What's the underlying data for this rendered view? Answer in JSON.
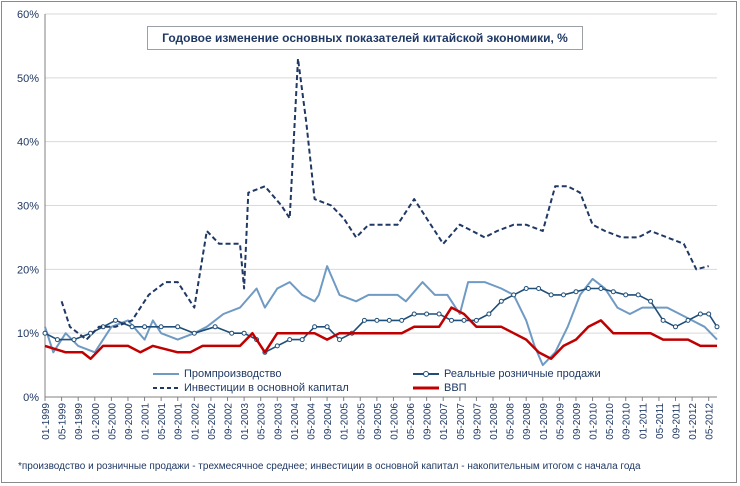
{
  "title": "Годовое изменение основных показателей китайской экономики, %",
  "footnote": "*производство и розничные продажи - трехмесячное среднее; инвестиции в основной капитал - накопительным итогом с начала года",
  "colors": {
    "industrial": "#6f9ac4",
    "retail": "#1f4e79",
    "investment": "#1f3864",
    "gdp": "#c00000"
  },
  "chart_data": {
    "type": "line",
    "title": "Годовое изменение основных показателей китайской экономики, %",
    "ylim": [
      0,
      60
    ],
    "y_ticks": [
      "0%",
      "10%",
      "20%",
      "30%",
      "40%",
      "50%",
      "60%"
    ],
    "x_ticks": [
      "01-1999",
      "05-1999",
      "09-1999",
      "01-2000",
      "05-2000",
      "09-2000",
      "01-2001",
      "05-2001",
      "09-2001",
      "01-2002",
      "05-2002",
      "09-2002",
      "01-2003",
      "05-2003",
      "09-2003",
      "01-2004",
      "05-2004",
      "09-2004",
      "01-2005",
      "05-2005",
      "09-2005",
      "01-2006",
      "05-2006",
      "09-2006",
      "01-2007",
      "05-2007",
      "09-2007",
      "01-2008",
      "05-2008",
      "09-2008",
      "01-2009",
      "05-2009",
      "09-2009",
      "01-2010",
      "05-2010",
      "09-2010",
      "01-2011",
      "05-2011",
      "09-2011",
      "01-2012",
      "05-2012"
    ],
    "x_range": [
      "1999-01",
      "2012-07"
    ],
    "grid": true,
    "legend_position": "bottom",
    "series": [
      {
        "name": "Промпроизводство",
        "style": "solid-light",
        "points": [
          [
            "1999-01",
            11
          ],
          [
            "1999-03",
            7
          ],
          [
            "1999-06",
            10
          ],
          [
            "1999-09",
            8
          ],
          [
            "2000-01",
            7
          ],
          [
            "2000-05",
            11
          ],
          [
            "2000-09",
            12
          ],
          [
            "2001-01",
            9
          ],
          [
            "2001-03",
            12
          ],
          [
            "2001-05",
            10
          ],
          [
            "2001-09",
            9
          ],
          [
            "2002-01",
            10
          ],
          [
            "2002-04",
            11
          ],
          [
            "2002-08",
            13
          ],
          [
            "2002-12",
            14
          ],
          [
            "2003-04",
            17
          ],
          [
            "2003-06",
            14
          ],
          [
            "2003-09",
            17
          ],
          [
            "2003-12",
            18
          ],
          [
            "2004-03",
            16
          ],
          [
            "2004-06",
            15
          ],
          [
            "2004-07",
            16
          ],
          [
            "2004-09",
            20.5
          ],
          [
            "2004-12",
            16
          ],
          [
            "2005-04",
            15
          ],
          [
            "2005-07",
            16
          ],
          [
            "2005-10",
            16
          ],
          [
            "2006-02",
            16
          ],
          [
            "2006-04",
            15
          ],
          [
            "2006-08",
            18
          ],
          [
            "2006-11",
            16
          ],
          [
            "2007-02",
            16
          ],
          [
            "2007-05",
            13
          ],
          [
            "2007-07",
            18
          ],
          [
            "2007-11",
            18
          ],
          [
            "2008-03",
            17
          ],
          [
            "2008-06",
            16
          ],
          [
            "2008-09",
            12
          ],
          [
            "2008-11",
            8
          ],
          [
            "2009-01",
            5
          ],
          [
            "2009-04",
            7
          ],
          [
            "2009-07",
            11
          ],
          [
            "2009-10",
            16
          ],
          [
            "2010-01",
            18.5
          ],
          [
            "2010-04",
            17
          ],
          [
            "2010-07",
            14
          ],
          [
            "2010-10",
            13
          ],
          [
            "2011-01",
            14
          ],
          [
            "2011-04",
            14
          ],
          [
            "2011-07",
            14
          ],
          [
            "2011-10",
            13
          ],
          [
            "2012-01",
            12
          ],
          [
            "2012-04",
            11
          ],
          [
            "2012-07",
            9
          ]
        ]
      },
      {
        "name": "Реальные розничные продажи",
        "style": "solid-markers",
        "points": [
          [
            "1999-01",
            10
          ],
          [
            "1999-04",
            9
          ],
          [
            "1999-08",
            9
          ],
          [
            "1999-12",
            10
          ],
          [
            "2000-03",
            11
          ],
          [
            "2000-06",
            12
          ],
          [
            "2000-10",
            11
          ],
          [
            "2001-01",
            11
          ],
          [
            "2001-05",
            11
          ],
          [
            "2001-09",
            11
          ],
          [
            "2002-01",
            10
          ],
          [
            "2002-06",
            11
          ],
          [
            "2002-10",
            10
          ],
          [
            "2003-01",
            10
          ],
          [
            "2003-04",
            9
          ],
          [
            "2003-06",
            7
          ],
          [
            "2003-09",
            8
          ],
          [
            "2003-12",
            9
          ],
          [
            "2004-03",
            9
          ],
          [
            "2004-06",
            11
          ],
          [
            "2004-09",
            11
          ],
          [
            "2004-12",
            9
          ],
          [
            "2005-03",
            10
          ],
          [
            "2005-06",
            12
          ],
          [
            "2005-09",
            12
          ],
          [
            "2005-12",
            12
          ],
          [
            "2006-03",
            12
          ],
          [
            "2006-06",
            13
          ],
          [
            "2006-09",
            13
          ],
          [
            "2006-12",
            13
          ],
          [
            "2007-03",
            12
          ],
          [
            "2007-06",
            12
          ],
          [
            "2007-09",
            12
          ],
          [
            "2007-12",
            13
          ],
          [
            "2008-03",
            15
          ],
          [
            "2008-06",
            16
          ],
          [
            "2008-09",
            17
          ],
          [
            "2008-12",
            17
          ],
          [
            "2009-03",
            16
          ],
          [
            "2009-06",
            16
          ],
          [
            "2009-09",
            16.5
          ],
          [
            "2009-12",
            17
          ],
          [
            "2010-03",
            17
          ],
          [
            "2010-06",
            16.5
          ],
          [
            "2010-09",
            16
          ],
          [
            "2010-12",
            16
          ],
          [
            "2011-03",
            15
          ],
          [
            "2011-06",
            12
          ],
          [
            "2011-09",
            11
          ],
          [
            "2011-12",
            12
          ],
          [
            "2012-03",
            13
          ],
          [
            "2012-05",
            13
          ],
          [
            "2012-07",
            11
          ]
        ]
      },
      {
        "name": "Инвестиции в основной капитал",
        "style": "dashed",
        "points": [
          [
            "1999-05",
            15
          ],
          [
            "1999-07",
            11
          ],
          [
            "1999-11",
            9
          ],
          [
            "2000-02",
            11
          ],
          [
            "2000-06",
            11
          ],
          [
            "2000-10",
            12
          ],
          [
            "2001-02",
            16
          ],
          [
            "2001-06",
            18
          ],
          [
            "2001-09",
            18
          ],
          [
            "2002-01",
            14
          ],
          [
            "2002-04",
            26
          ],
          [
            "2002-07",
            24
          ],
          [
            "2002-12",
            24
          ],
          [
            "2003-01",
            17
          ],
          [
            "2003-02",
            32
          ],
          [
            "2003-06",
            33
          ],
          [
            "2003-10",
            30
          ],
          [
            "2003-12",
            28
          ],
          [
            "2004-02",
            53
          ],
          [
            "2004-04",
            43
          ],
          [
            "2004-06",
            31
          ],
          [
            "2004-10",
            30
          ],
          [
            "2005-01",
            28
          ],
          [
            "2005-04",
            25
          ],
          [
            "2005-07",
            27
          ],
          [
            "2005-11",
            27
          ],
          [
            "2006-02",
            27
          ],
          [
            "2006-06",
            31
          ],
          [
            "2006-09",
            28
          ],
          [
            "2007-01",
            24
          ],
          [
            "2007-05",
            27
          ],
          [
            "2007-08",
            26
          ],
          [
            "2007-11",
            25
          ],
          [
            "2008-02",
            26
          ],
          [
            "2008-06",
            27
          ],
          [
            "2008-09",
            27
          ],
          [
            "2009-01",
            26
          ],
          [
            "2009-04",
            33
          ],
          [
            "2009-07",
            33
          ],
          [
            "2009-10",
            32
          ],
          [
            "2010-01",
            27
          ],
          [
            "2010-04",
            26
          ],
          [
            "2010-08",
            25
          ],
          [
            "2010-12",
            25
          ],
          [
            "2011-03",
            26
          ],
          [
            "2011-07",
            25
          ],
          [
            "2011-11",
            24
          ],
          [
            "2012-02",
            20
          ],
          [
            "2012-05",
            20.5
          ]
        ]
      },
      {
        "name": "ВВП",
        "style": "solid-thick",
        "points": [
          [
            "1999-01",
            8
          ],
          [
            "1999-06",
            7
          ],
          [
            "1999-10",
            7
          ],
          [
            "1999-12",
            6
          ],
          [
            "2000-03",
            8
          ],
          [
            "2000-09",
            8
          ],
          [
            "2000-12",
            7
          ],
          [
            "2001-03",
            8
          ],
          [
            "2001-09",
            7
          ],
          [
            "2001-12",
            7
          ],
          [
            "2002-03",
            8
          ],
          [
            "2002-09",
            8
          ],
          [
            "2002-12",
            8
          ],
          [
            "2003-03",
            10
          ],
          [
            "2003-06",
            7
          ],
          [
            "2003-09",
            10
          ],
          [
            "2003-12",
            10
          ],
          [
            "2004-03",
            10
          ],
          [
            "2004-06",
            10
          ],
          [
            "2004-09",
            9
          ],
          [
            "2004-12",
            10
          ],
          [
            "2005-03",
            10
          ],
          [
            "2005-06",
            10
          ],
          [
            "2005-09",
            10
          ],
          [
            "2005-12",
            10
          ],
          [
            "2006-03",
            10
          ],
          [
            "2006-06",
            11
          ],
          [
            "2006-09",
            11
          ],
          [
            "2006-12",
            11
          ],
          [
            "2007-03",
            14
          ],
          [
            "2007-06",
            13
          ],
          [
            "2007-09",
            11
          ],
          [
            "2007-12",
            11
          ],
          [
            "2008-03",
            11
          ],
          [
            "2008-06",
            10
          ],
          [
            "2008-09",
            9
          ],
          [
            "2008-12",
            7
          ],
          [
            "2009-03",
            6
          ],
          [
            "2009-06",
            8
          ],
          [
            "2009-09",
            9
          ],
          [
            "2009-12",
            11
          ],
          [
            "2010-03",
            12
          ],
          [
            "2010-06",
            10
          ],
          [
            "2010-09",
            10
          ],
          [
            "2010-12",
            10
          ],
          [
            "2011-03",
            10
          ],
          [
            "2011-06",
            9
          ],
          [
            "2011-09",
            9
          ],
          [
            "2011-12",
            9
          ],
          [
            "2012-03",
            8
          ],
          [
            "2012-07",
            8
          ]
        ]
      }
    ]
  }
}
